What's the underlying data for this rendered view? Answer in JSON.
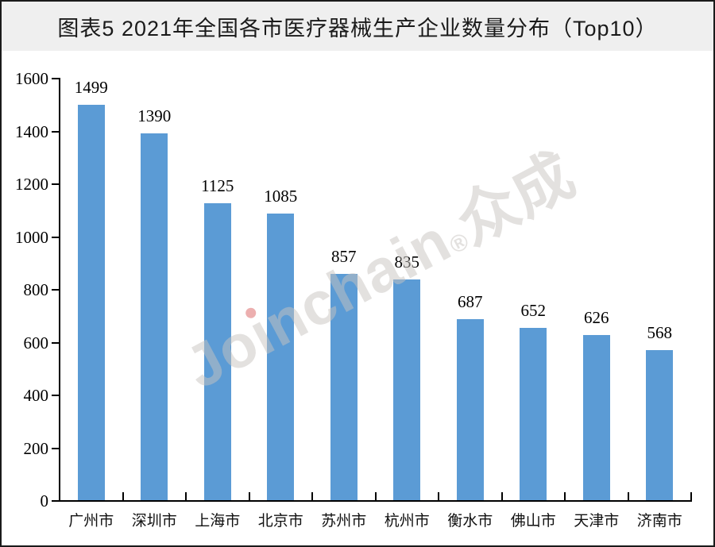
{
  "header": {
    "title": "图表5 2021年全国各市医疗器械生产企业数量分布（Top10）"
  },
  "watermark": {
    "full_text": "Joinchain®众成",
    "part_jo": "Jo",
    "part_i": "ı",
    "part_nchain": "nchain",
    "part_reg": "®",
    "part_cjk": "众成"
  },
  "colors": {
    "bar": "#5B9BD5",
    "header_bg": "#efefef",
    "title_text": "#1a1a1a",
    "axis": "#000000",
    "frame_border": "#1a1a1a",
    "watermark": "rgba(200,196,192,0.5)",
    "watermark_dot": "rgba(220,110,110,0.55)"
  },
  "chart_data": {
    "type": "bar",
    "title": "图表5 2021年全国各市医疗器械生产企业数量分布（Top10）",
    "categories": [
      "广州市",
      "深圳市",
      "上海市",
      "北京市",
      "苏州市",
      "杭州市",
      "衡水市",
      "佛山市",
      "天津市",
      "济南市"
    ],
    "values": [
      1499,
      1390,
      1125,
      1085,
      857,
      835,
      687,
      652,
      626,
      568
    ],
    "data_labels": [
      1499,
      1390,
      1125,
      1085,
      857,
      835,
      687,
      652,
      626,
      568
    ],
    "xlabel": "",
    "ylabel": "",
    "ylim": [
      0,
      1600
    ],
    "ytick_interval": 200,
    "yticks": [
      1600,
      1400,
      1200,
      1000,
      800,
      600,
      400,
      200,
      0
    ],
    "grid": false,
    "legend": null,
    "bar_orientation": "vertical"
  }
}
